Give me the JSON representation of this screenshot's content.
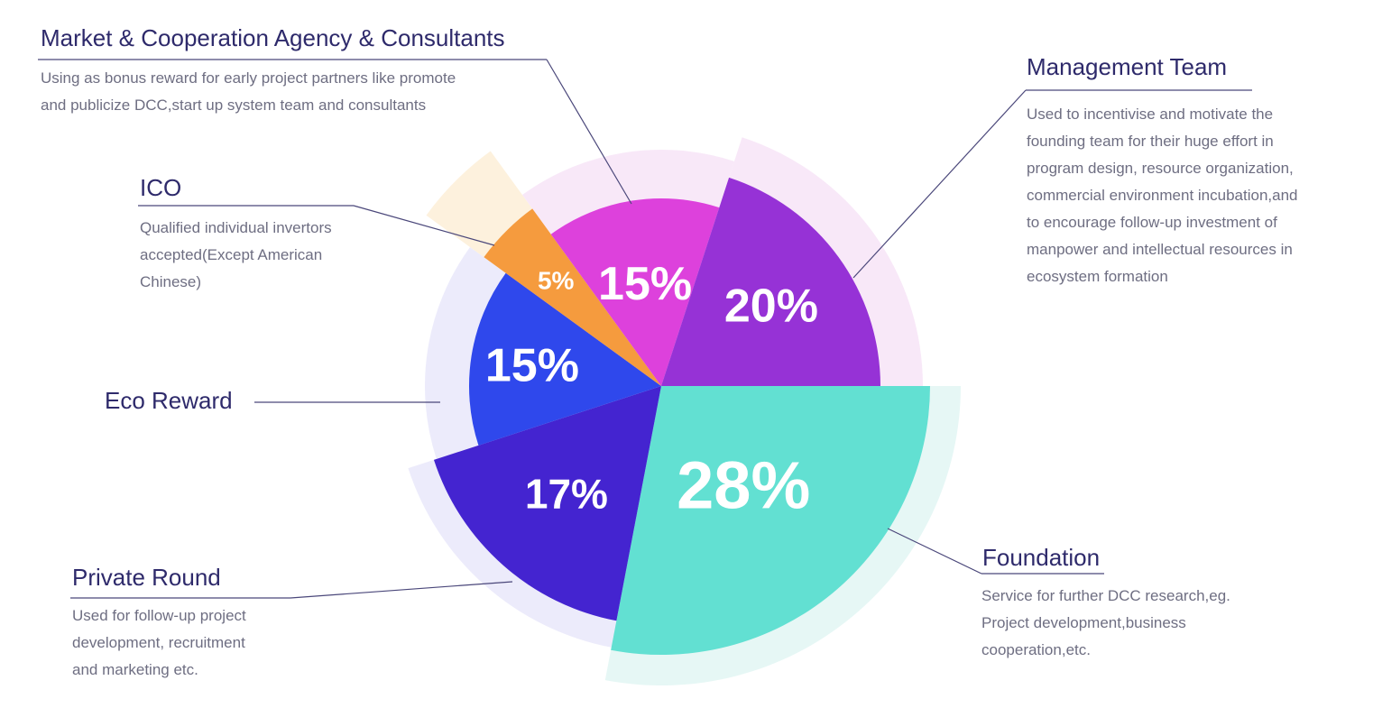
{
  "chart_data": {
    "type": "pie",
    "title": "",
    "slices": [
      {
        "key": "foundation",
        "label": "Foundation",
        "value": 28,
        "value_label": "28%",
        "color": "#62e0d2",
        "halo_color": "#e6f7f5"
      },
      {
        "key": "private",
        "label": "Private Round",
        "value": 17,
        "value_label": "17%",
        "color": "#4424d0",
        "halo_color": "#ecebfb"
      },
      {
        "key": "eco",
        "label": "Eco Reward",
        "value": 15,
        "value_label": "15%",
        "color": "#2f48ec",
        "halo_color": "#ecebfb"
      },
      {
        "key": "ico",
        "label": "ICO",
        "value": 5,
        "value_label": "5%",
        "color": "#f59b3e",
        "halo_color": "#fdf1dd"
      },
      {
        "key": "market",
        "label": "Market & Cooperation Agency & Consultants",
        "value": 15,
        "value_label": "15%",
        "color": "#dd41dc",
        "halo_color": "#f8e8f8"
      },
      {
        "key": "management",
        "label": "Management Team",
        "value": 20,
        "value_label": "20%",
        "color": "#9632d6",
        "halo_color": "#f8e8f8"
      }
    ]
  },
  "legend": {
    "market": {
      "title": "Market & Cooperation Agency & Consultants",
      "lines": [
        "Using as bonus reward for early project partners like promote",
        "and publicize DCC,start up system team and consultants"
      ]
    },
    "management": {
      "title": "Management Team",
      "lines": [
        "Used to incentivise and motivate the",
        "founding team for their huge effort in",
        "program design, resource organization,",
        "commercial environment incubation,and",
        "to encourage follow-up investment of",
        "manpower and intellectual resources in",
        "ecosystem formation"
      ]
    },
    "ico": {
      "title": "ICO",
      "lines": [
        "Qualified individual invertors",
        "accepted(Except American",
        "Chinese)"
      ]
    },
    "eco": {
      "title": "Eco Reward",
      "lines": []
    },
    "private": {
      "title": "Private Round",
      "lines": [
        "Used for follow-up project",
        "development, recruitment",
        "and marketing etc."
      ]
    },
    "foundation": {
      "title": "Foundation",
      "lines": [
        "Service for further DCC research,eg.",
        "Project development,business",
        "cooperation,etc."
      ]
    }
  },
  "colors": {
    "title_text": "#2e2a6b",
    "description_text": "#6e6e82",
    "leader_line": "#4a477a"
  }
}
